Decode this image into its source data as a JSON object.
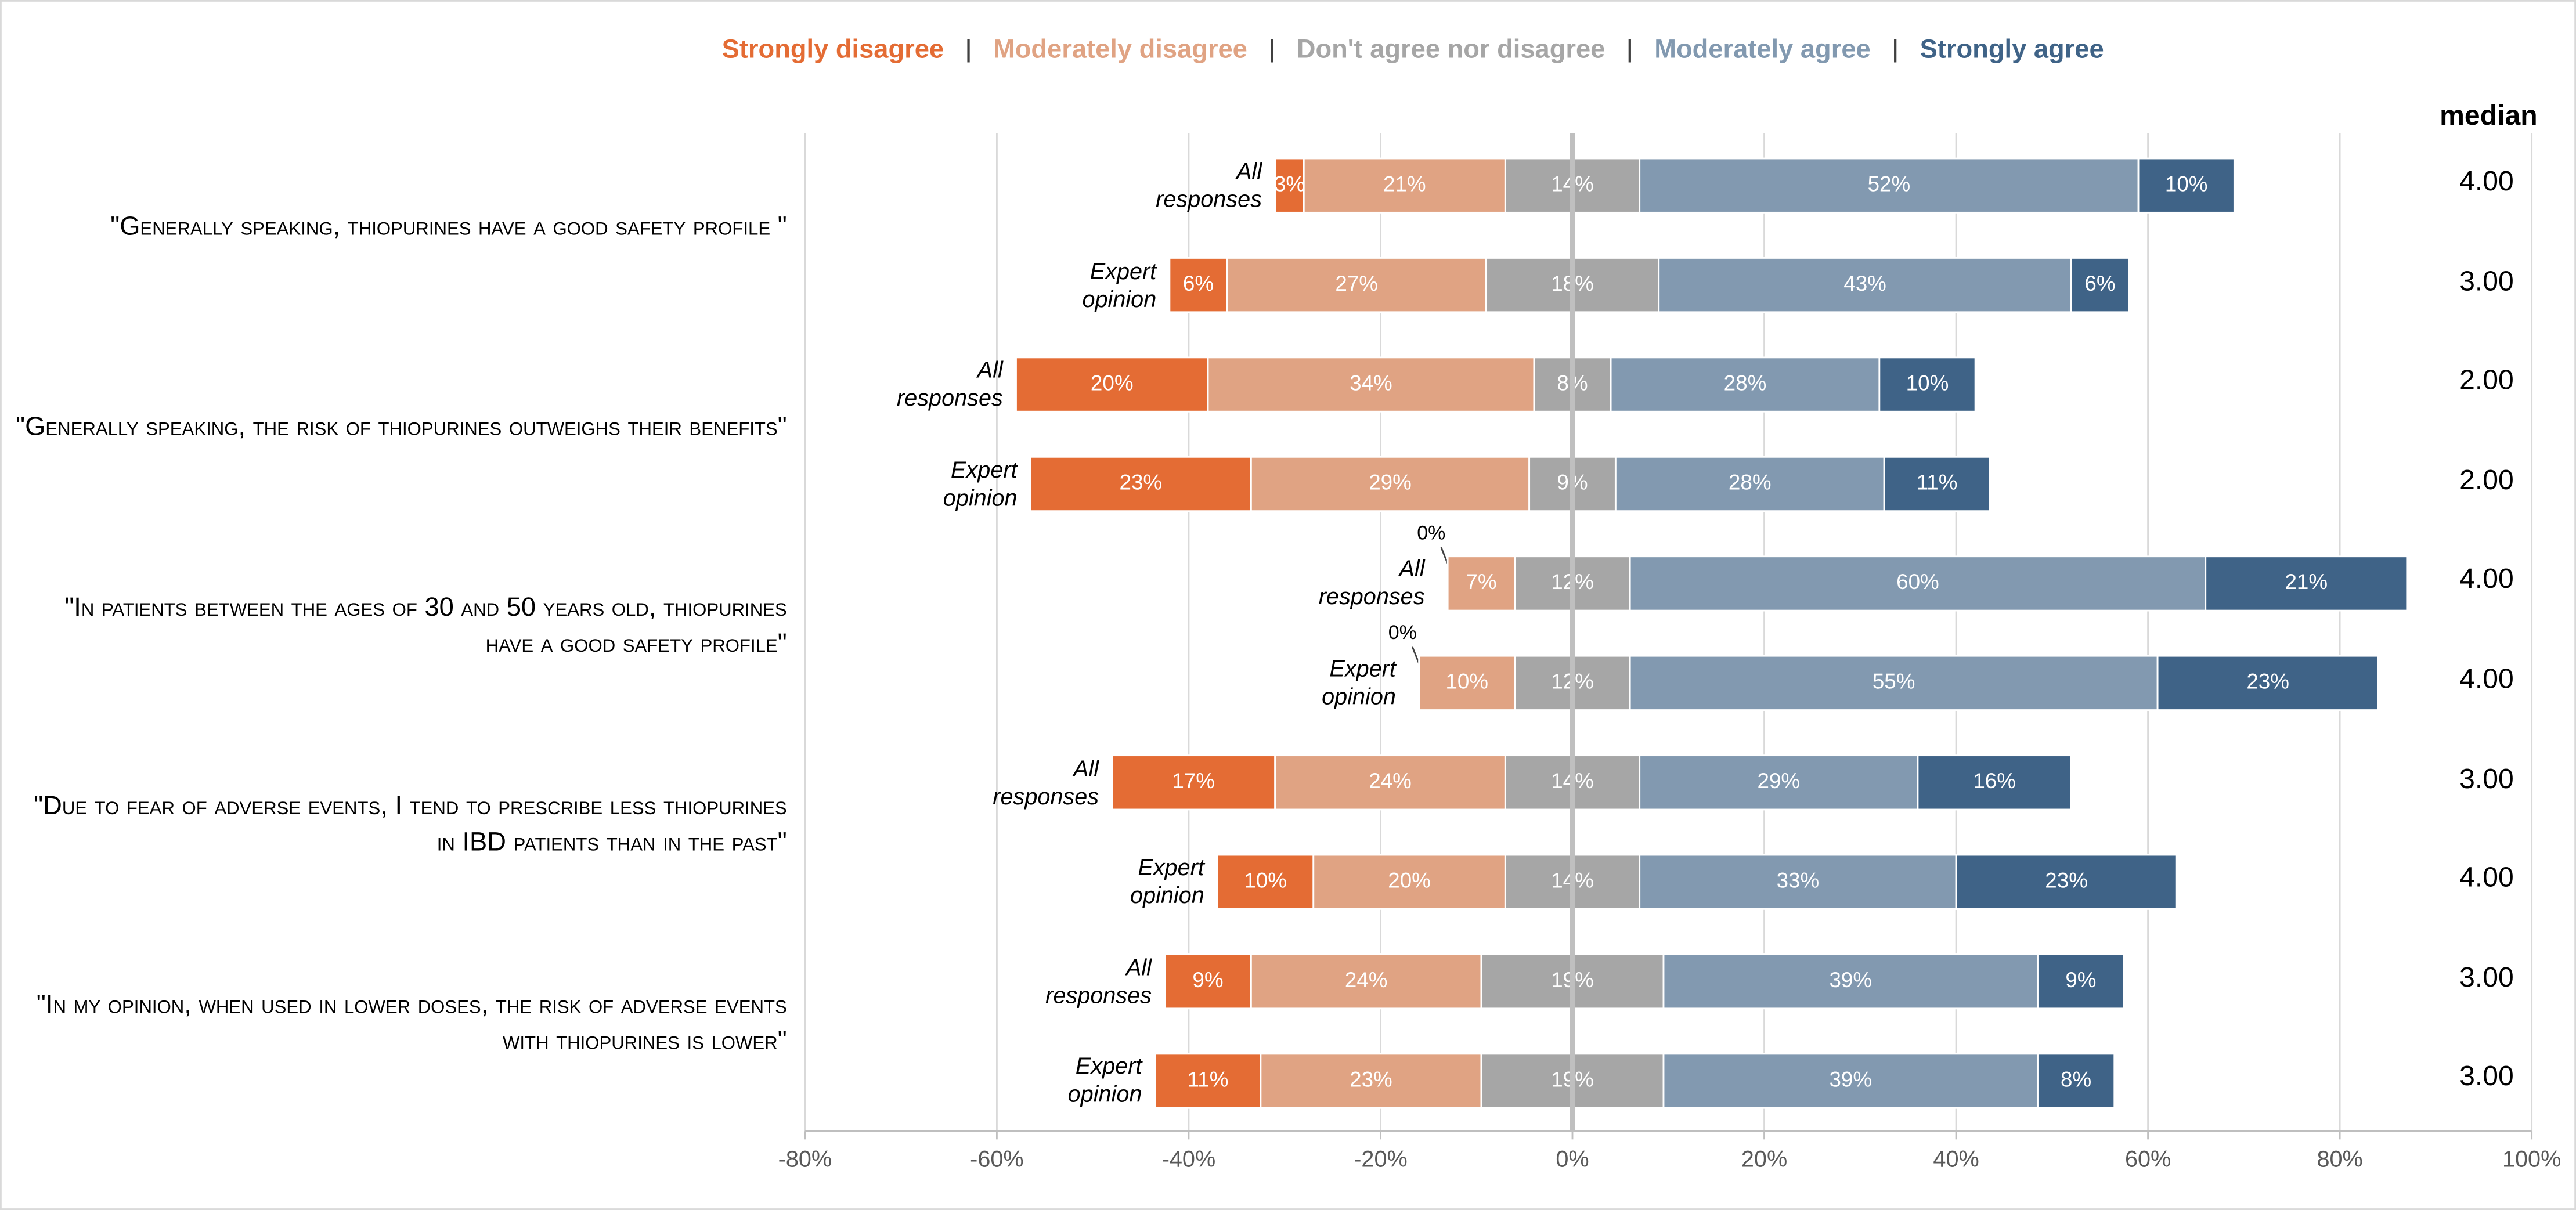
{
  "chart_data": {
    "type": "diverging-bar",
    "categories": [
      "All responses",
      "Expert opinion",
      "All responses",
      "Expert opinion",
      "All responses",
      "Expert opinion",
      "All responses",
      "Expert opinion",
      "All responses",
      "Expert opinion"
    ],
    "groups": [
      "\"Generally speaking, thiopurines have a good safety profile \"",
      "\"Generally speaking, the risk of thiopurines outweighs their benefits\"",
      "\"In patients between the ages of 30 and 50 years old, thiopurines have a good safety profile\"",
      "\"Due to fear of adverse events, I tend to prescribe less thiopurines in IBD patients than in the past\"",
      "\"In my opinion, when used in lower doses, the risk of adverse events with thiopurines is lower\""
    ],
    "series": [
      {
        "name": "Strongly disagree",
        "color": "#e46c34",
        "values": [
          3,
          6,
          20,
          23,
          0,
          0,
          17,
          10,
          9,
          11
        ],
        "value_labels": [
          "3%",
          "6%",
          "20%",
          "23%",
          "0%",
          "0%",
          "17%",
          "10%",
          "9%",
          "11%"
        ]
      },
      {
        "name": "Moderately disagree",
        "color": "#e0a383",
        "values": [
          21,
          27,
          34,
          29,
          7,
          10,
          24,
          20,
          24,
          23
        ],
        "value_labels": [
          "21%",
          "27%",
          "34%",
          "29%",
          "7%",
          "10%",
          "24%",
          "20%",
          "24%",
          "23%"
        ]
      },
      {
        "name": "Don't agree nor disagree",
        "color": "#a6a6a6",
        "values": [
          14,
          18,
          8,
          9,
          12,
          12,
          14,
          14,
          19,
          19
        ],
        "value_labels": [
          "14%",
          "18%",
          "8%",
          "9%",
          "12%",
          "12%",
          "14%",
          "14%",
          "19%",
          "19%"
        ]
      },
      {
        "name": "Moderately agree",
        "color": "#8299b0",
        "values": [
          52,
          43,
          28,
          28,
          60,
          55,
          29,
          33,
          39,
          39
        ],
        "value_labels": [
          "52%",
          "43%",
          "28%",
          "28%",
          "60%",
          "55%",
          "29%",
          "33%",
          "39%",
          "39%"
        ]
      },
      {
        "name": "Strongly agree",
        "color": "#3f6387",
        "values": [
          10,
          6,
          10,
          11,
          21,
          23,
          16,
          23,
          9,
          8
        ],
        "value_labels": [
          "10%",
          "6%",
          "10%",
          "11%",
          "21%",
          "23%",
          "16%",
          "23%",
          "9%",
          "8%"
        ]
      }
    ],
    "median": {
      "title": "median",
      "values": [
        4,
        3,
        2,
        2,
        4,
        4,
        3,
        4,
        3,
        3
      ],
      "value_labels": [
        "4.00",
        "3.00",
        "2.00",
        "2.00",
        "4.00",
        "4.00",
        "3.00",
        "4.00",
        "3.00",
        "3.00"
      ]
    },
    "xlim": [
      -80,
      100
    ],
    "xticks": [
      {
        "value": -80,
        "label": "-80%"
      },
      {
        "value": -60,
        "label": "-60%"
      },
      {
        "value": -40,
        "label": "-40%"
      },
      {
        "value": -20,
        "label": "-20%"
      },
      {
        "value": 0,
        "label": "0%"
      },
      {
        "value": 20,
        "label": "20%"
      },
      {
        "value": 40,
        "label": "40%"
      },
      {
        "value": 60,
        "label": "60%"
      },
      {
        "value": 80,
        "label": "80%"
      },
      {
        "value": 100,
        "label": "100%"
      }
    ],
    "grid": true,
    "legend": "top"
  }
}
